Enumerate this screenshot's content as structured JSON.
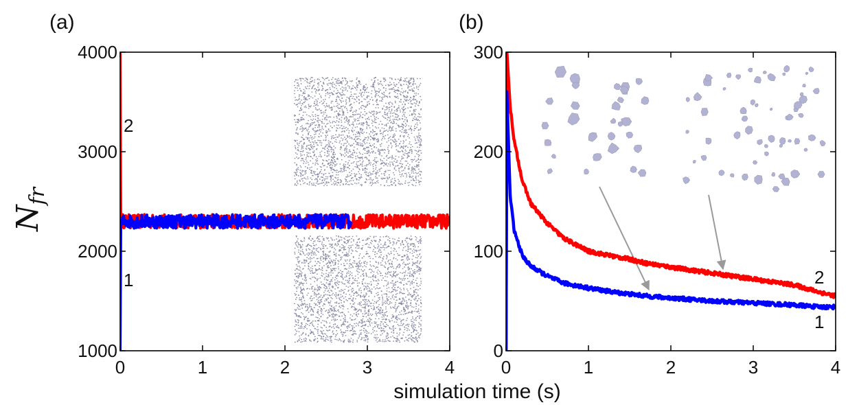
{
  "chart_data": [
    {
      "panel": "(a)",
      "type": "line",
      "xlim": [
        0,
        4
      ],
      "ylim": [
        1000,
        4000
      ],
      "xticks": [
        "0",
        "1",
        "2",
        "3",
        "4"
      ],
      "yticks": [
        "1000",
        "2000",
        "3000",
        "4000"
      ],
      "series": [
        {
          "label": "2",
          "color": "#ff0000",
          "x": [
            0,
            0.008,
            0.02,
            0.05,
            0.5,
            1,
            1.5,
            2,
            2.5,
            2.8,
            3,
            3.5,
            4
          ],
          "y": [
            4000,
            2350,
            2310,
            2300,
            2300,
            2300,
            2300,
            2300,
            2300,
            2300,
            2300,
            2300,
            2300
          ]
        },
        {
          "label": "1",
          "color": "#0000ff",
          "x": [
            0,
            0.008,
            0.02,
            0.05,
            0.5,
            1,
            1.5,
            2,
            2.5,
            2.8
          ],
          "y": [
            1000,
            2250,
            2290,
            2300,
            2300,
            2300,
            2300,
            2300,
            2300,
            2300
          ]
        }
      ],
      "insets": [
        "sparse-particle-field-top",
        "sparse-particle-field-bottom"
      ]
    },
    {
      "panel": "(b)",
      "type": "line",
      "xlim": [
        0,
        4
      ],
      "ylim": [
        0,
        300
      ],
      "xticks": [
        "0",
        "1",
        "2",
        "3",
        "4"
      ],
      "yticks": [
        "0",
        "100",
        "200",
        "300"
      ],
      "series": [
        {
          "label": "2",
          "color": "#ff0000",
          "x": [
            0,
            0.01,
            0.05,
            0.1,
            0.2,
            0.3,
            0.5,
            0.7,
            1.0,
            1.3,
            1.5,
            1.7,
            2.0,
            2.5,
            3.0,
            3.5,
            3.8,
            4.0
          ],
          "y": [
            0,
            300,
            245,
            210,
            170,
            148,
            128,
            113,
            100,
            95,
            92,
            88,
            84,
            78,
            72,
            66,
            59,
            55
          ]
        },
        {
          "label": "1",
          "color": "#0000ff",
          "x": [
            0,
            0.01,
            0.05,
            0.1,
            0.2,
            0.3,
            0.5,
            0.7,
            1.0,
            1.3,
            1.5,
            1.7,
            2.0,
            2.5,
            3.0,
            3.5,
            3.8,
            4.0
          ],
          "y": [
            0,
            260,
            155,
            120,
            95,
            85,
            75,
            68,
            63,
            59,
            57,
            55,
            53,
            50,
            48,
            46,
            44,
            44
          ]
        }
      ],
      "insets": [
        "clustered-particles-left",
        "clustered-particles-right"
      ]
    }
  ],
  "labels": {
    "panel_a": "(a)",
    "panel_b": "(b)",
    "ylabel_main": "N",
    "ylabel_sub": "fr",
    "xlabel": "simulation time (s)",
    "a_curve2": "2",
    "a_curve1": "1",
    "b_curve2": "2",
    "b_curve1": "1"
  }
}
